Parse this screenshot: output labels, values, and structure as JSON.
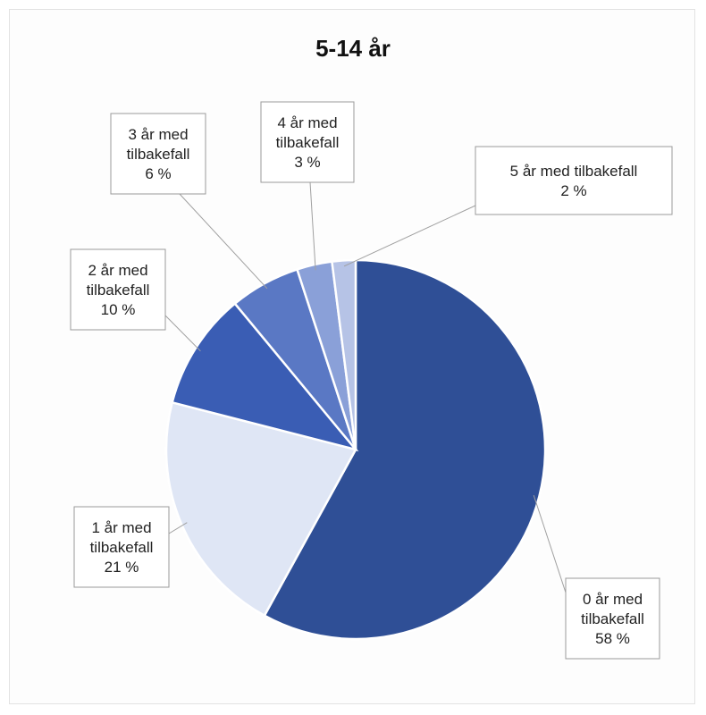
{
  "chart_data": {
    "type": "pie",
    "title": "5-14 år",
    "slices": [
      {
        "label": "0 år med tilbakefall",
        "value": 58,
        "percent_text": "58 %",
        "color": "#2f4f96"
      },
      {
        "label": "1 år med tilbakefall",
        "value": 21,
        "percent_text": "21 %",
        "color": "#dfe6f5"
      },
      {
        "label": "2 år med tilbakefall",
        "value": 10,
        "percent_text": "10 %",
        "color": "#3a5db4"
      },
      {
        "label": "3 år med tilbakefall",
        "value": 6,
        "percent_text": "6 %",
        "color": "#5a78c4"
      },
      {
        "label": "4 år med tilbakefall",
        "value": 3,
        "percent_text": "3 %",
        "color": "#8aa0d8"
      },
      {
        "label": "5 år med tilbakefall",
        "value": 2,
        "percent_text": "2 %",
        "color": "#b6c3e6"
      }
    ],
    "callouts": [
      {
        "lines": [
          "0 år med",
          "tilbakefall",
          "58 %"
        ]
      },
      {
        "lines": [
          "1 år med",
          "tilbakefall",
          "21 %"
        ]
      },
      {
        "lines": [
          "2 år med",
          "tilbakefall",
          "10 %"
        ]
      },
      {
        "lines": [
          "3 år med",
          "tilbakefall",
          "6 %"
        ]
      },
      {
        "lines": [
          "4 år med",
          "tilbakefall",
          "3 %"
        ]
      },
      {
        "lines": [
          "5 år med tilbakefall",
          "2 %"
        ]
      }
    ],
    "start_angle_deg": 0,
    "direction": "clockwise",
    "legend": "none"
  }
}
